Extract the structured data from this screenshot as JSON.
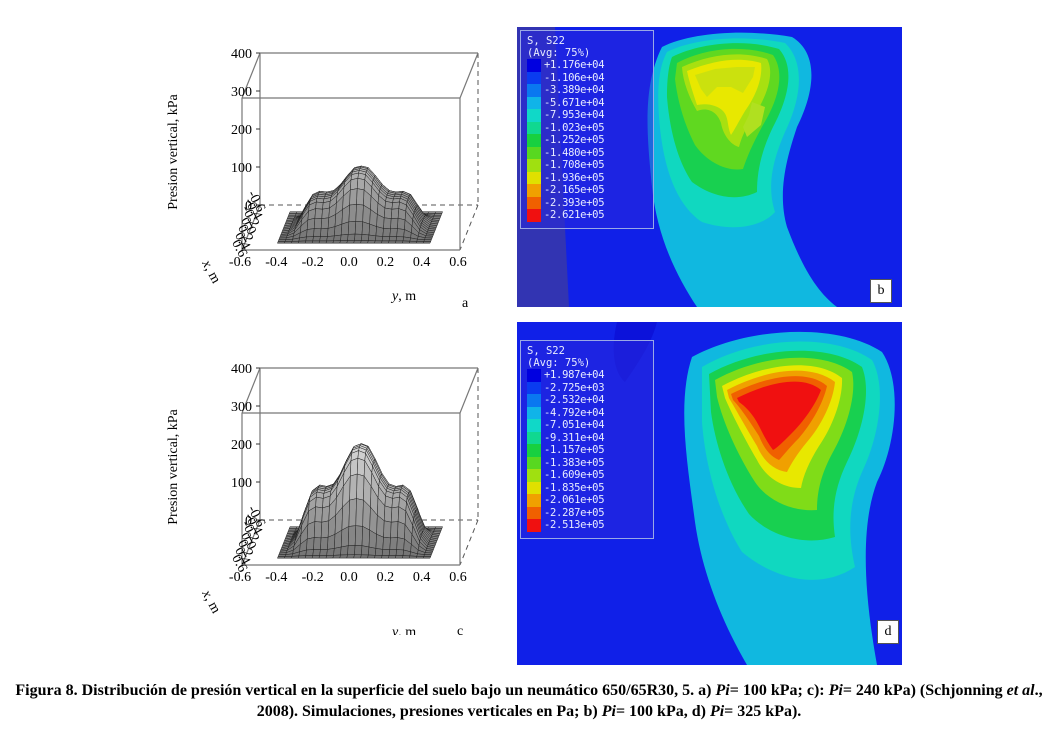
{
  "plot_a": {
    "zlabel": "Presion vertical, kPa",
    "z_ticks": [
      "0",
      "100",
      "200",
      "300",
      "400"
    ],
    "x_ticks": [
      "-0.6",
      "-0.4",
      "-0.2",
      "0.0",
      "0.2",
      "0.4",
      "0.6"
    ],
    "xlabel_var": "x",
    "xlabel_unit": ", m",
    "y_ticks": [
      "-0.6",
      "-0.4",
      "-0.2",
      "0.0",
      "0.2",
      "0.4",
      "0.6"
    ],
    "ylabel_var": "y",
    "ylabel_unit": ", m",
    "panel_letter": "a"
  },
  "plot_c": {
    "zlabel": "Presion vertical, kPa",
    "z_ticks": [
      "0",
      "100",
      "200",
      "300",
      "400"
    ],
    "x_ticks": [
      "-0.6",
      "-0.4",
      "-0.2",
      "0.0",
      "0.2",
      "0.4",
      "0.6"
    ],
    "xlabel_var": "x",
    "xlabel_unit": ", m",
    "y_ticks": [
      "-0.6",
      "-0.4",
      "-0.2",
      "0.0",
      "0.2",
      "0.4",
      "0.6"
    ],
    "ylabel_var": "y",
    "ylabel_unit": ", m",
    "panel_letter": "c"
  },
  "sim_b": {
    "legend_title": "S, S22",
    "legend_subtitle": "(Avg: 75%)",
    "legend_values": [
      "+1.176e+04",
      "-1.106e+04",
      "-3.389e+04",
      "-5.671e+04",
      "-7.953e+04",
      "-1.023e+05",
      "-1.252e+05",
      "-1.480e+05",
      "-1.708e+05",
      "-1.936e+05",
      "-2.165e+05",
      "-2.393e+05",
      "-2.621e+05"
    ],
    "panel_letter": "b"
  },
  "sim_d": {
    "legend_title": "S, S22",
    "legend_subtitle": "(Avg: 75%)",
    "legend_values": [
      "+1.987e+04",
      "-2.725e+03",
      "-2.532e+04",
      "-4.792e+04",
      "-7.051e+04",
      "-9.311e+04",
      "-1.157e+05",
      "-1.383e+05",
      "-1.609e+05",
      "-1.835e+05",
      "-2.061e+05",
      "-2.287e+05",
      "-2.513e+05"
    ],
    "panel_letter": "d"
  },
  "legend_colors": [
    "#0000e0",
    "#0a3cf0",
    "#0a78f0",
    "#10b4e8",
    "#10d8c8",
    "#10d890",
    "#18d040",
    "#58d820",
    "#a0e010",
    "#e0e000",
    "#f0a000",
    "#f06000",
    "#f01010"
  ],
  "caption": {
    "part1": "Figura 8. Distribución de presión vertical en la superficie del suelo bajo un neumático 650/65R30, 5. a) ",
    "pi1": "Pi",
    "part2": "= 100 kPa; c): ",
    "pi2": "Pi",
    "part3": "= 240 kPa) (Schjonning ",
    "etal": "et al",
    "part4": "., 2008). Simulaciones, presiones verticales en Pa; b) ",
    "pi3": "Pi",
    "part5": "= 100 kPa, d) ",
    "pi4": "Pi",
    "part6": "= 325 kPa)."
  }
}
